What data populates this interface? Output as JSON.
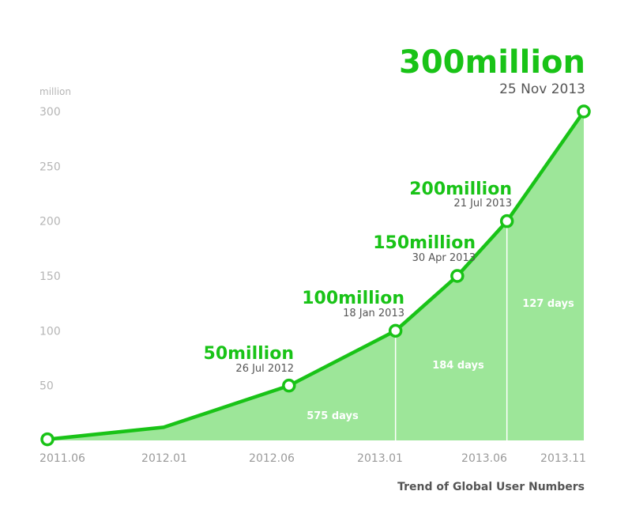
{
  "chart_data": {
    "type": "area",
    "title": "Trend of Global User Numbers",
    "y_unit": "million",
    "ylim": [
      0,
      300
    ],
    "y_ticks": [
      "50",
      "100",
      "150",
      "200",
      "250",
      "300"
    ],
    "x_ticks": [
      "2011.06",
      "2012.01",
      "2012.06",
      "2013.01",
      "2013.06",
      "2013.11"
    ],
    "colors": {
      "line": "#19c317",
      "fill": "#9de699"
    },
    "series": [
      {
        "points": [
          {
            "date": "2011-06-23",
            "value": 1
          },
          {
            "date": "2012-01-01",
            "value": 12
          },
          {
            "date": "2012-07-26",
            "value": 50
          },
          {
            "date": "2013-01-18",
            "value": 100
          },
          {
            "date": "2013-04-30",
            "value": 150
          },
          {
            "date": "2013-07-21",
            "value": 200
          },
          {
            "date": "2013-11-25",
            "value": 300
          }
        ]
      }
    ],
    "milestones": [
      {
        "label": "50million",
        "date_label": "26 Jul 2012",
        "date": "2012-07-26",
        "value": 50
      },
      {
        "label": "100million",
        "date_label": "18 Jan 2013",
        "date": "2013-01-18",
        "value": 100
      },
      {
        "label": "150million",
        "date_label": "30 Apr 2013",
        "date": "2013-04-30",
        "value": 150
      },
      {
        "label": "200million",
        "date_label": "21 Jul 2013",
        "date": "2013-07-21",
        "value": 200
      },
      {
        "label": "300million",
        "date_label": "25 Nov 2013",
        "date": "2013-11-25",
        "value": 300
      }
    ],
    "intervals": [
      {
        "label": "575 days",
        "from": "2011-06-23",
        "to": "2013-01-18"
      },
      {
        "label": "184 days",
        "from": "2013-01-18",
        "to": "2013-07-21"
      },
      {
        "label": "127 days",
        "from": "2013-07-21",
        "to": "2013-11-25"
      }
    ]
  }
}
